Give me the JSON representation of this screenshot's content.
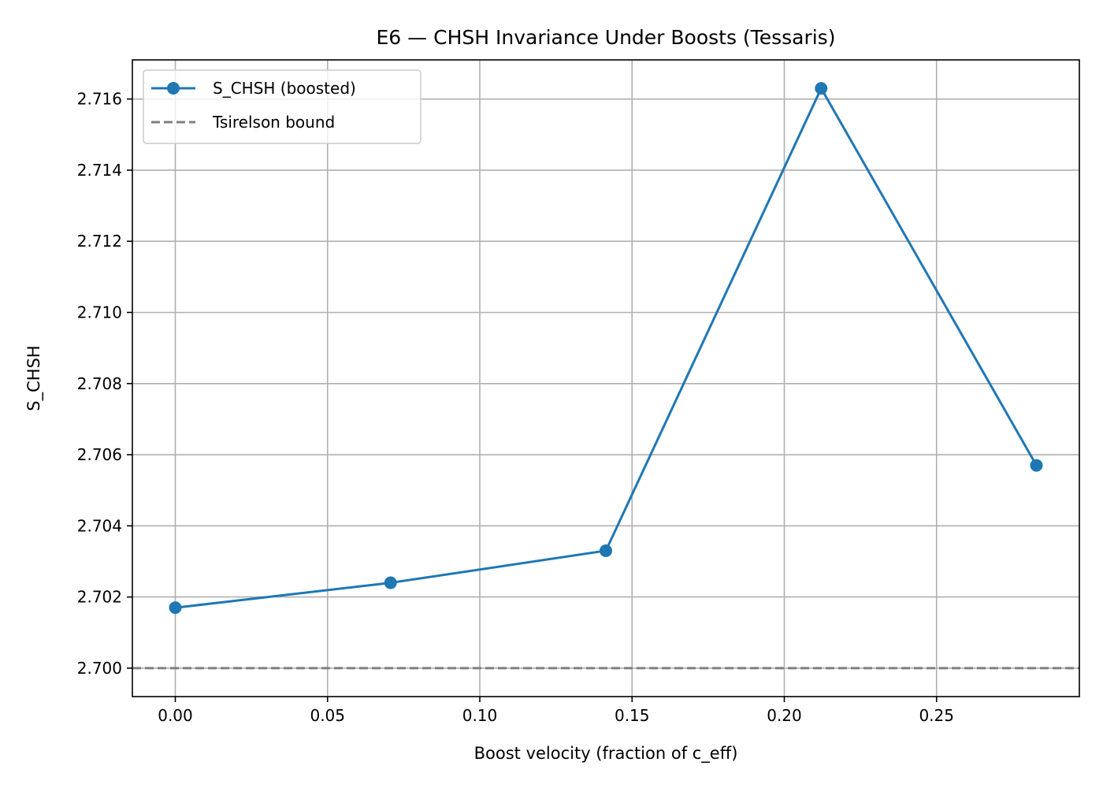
{
  "chart_data": {
    "type": "line",
    "title": "E6 — CHSH Invariance Under Boosts (Tessaris)",
    "xlabel": "Boost velocity (fraction of c_eff)",
    "ylabel": "S_CHSH",
    "xlim": [
      -0.0141,
      0.2969
    ],
    "ylim": [
      2.6992,
      2.7171
    ],
    "x_ticks": [
      0.0,
      0.05,
      0.1,
      0.15,
      0.2,
      0.25
    ],
    "x_tick_labels": [
      "0.00",
      "0.05",
      "0.10",
      "0.15",
      "0.20",
      "0.25"
    ],
    "y_ticks": [
      2.7,
      2.702,
      2.704,
      2.706,
      2.708,
      2.71,
      2.712,
      2.714,
      2.716
    ],
    "y_tick_labels": [
      "2.700",
      "2.702",
      "2.704",
      "2.706",
      "2.708",
      "2.710",
      "2.712",
      "2.714",
      "2.716"
    ],
    "grid": true,
    "legend_position": "top-left",
    "series": [
      {
        "name": "S_CHSH (boosted)",
        "color": "#1f77b4",
        "marker": "circle",
        "x": [
          0.0,
          0.0707,
          0.1414,
          0.2121,
          0.2828
        ],
        "y": [
          2.7017,
          2.7024,
          2.7033,
          2.7163,
          2.7057
        ]
      }
    ],
    "reference_lines": [
      {
        "name": "Tsirelson bound",
        "orientation": "horizontal",
        "value": 2.7,
        "color": "#808080",
        "style": "dashed"
      }
    ]
  }
}
